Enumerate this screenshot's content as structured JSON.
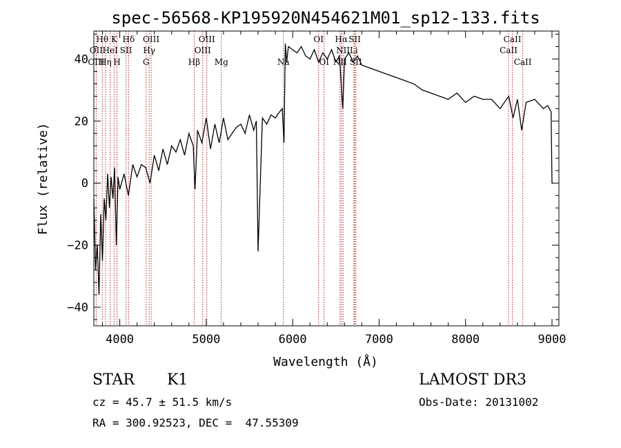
{
  "chart_data": {
    "type": "line",
    "title": "spec-56568-KP195920N454621M01_sp12-133.fits",
    "xlabel": "Wavelength (Å)",
    "ylabel": "Flux (relative)",
    "xlim": [
      3700,
      9080
    ],
    "ylim": [
      -46,
      49
    ],
    "xticks": [
      4000,
      5000,
      6000,
      7000,
      8000,
      9000
    ],
    "yticks": [
      -40,
      -20,
      0,
      20,
      40
    ],
    "series": [
      {
        "name": "spectrum",
        "x": [
          3700,
          3720,
          3740,
          3760,
          3780,
          3800,
          3820,
          3840,
          3860,
          3880,
          3900,
          3920,
          3940,
          3960,
          3980,
          4000,
          4050,
          4100,
          4150,
          4200,
          4250,
          4300,
          4350,
          4400,
          4450,
          4500,
          4550,
          4600,
          4650,
          4700,
          4750,
          4800,
          4850,
          4870,
          4900,
          4950,
          5000,
          5050,
          5100,
          5150,
          5200,
          5250,
          5300,
          5350,
          5400,
          5450,
          5500,
          5550,
          5580,
          5600,
          5650,
          5700,
          5750,
          5800,
          5850,
          5880,
          5900,
          5915,
          5930,
          5950,
          6000,
          6050,
          6100,
          6150,
          6200,
          6250,
          6300,
          6350,
          6400,
          6450,
          6500,
          6540,
          6560,
          6580,
          6600,
          6650,
          6700,
          6750,
          6800,
          6900,
          7000,
          7100,
          7200,
          7300,
          7400,
          7500,
          7600,
          7700,
          7800,
          7900,
          8000,
          8100,
          8200,
          8300,
          8400,
          8500,
          8550,
          8600,
          8650,
          8700,
          8800,
          8900,
          8950,
          8990,
          9000,
          9010
        ],
        "y": [
          -5,
          -28,
          -20,
          -36,
          -10,
          -25,
          -5,
          -12,
          3,
          -8,
          2,
          -5,
          5,
          -20,
          2,
          -2,
          3,
          -4,
          6,
          2,
          6,
          5,
          0,
          9,
          4,
          11,
          6,
          12,
          10,
          14,
          9,
          16,
          12,
          -2,
          17,
          13,
          21,
          11,
          19,
          13,
          21,
          14,
          16,
          18,
          19,
          16,
          22,
          17,
          20,
          -22,
          21,
          19,
          22,
          21,
          23,
          24,
          13,
          45,
          39,
          44,
          43,
          42,
          44,
          41,
          40,
          43,
          39,
          42,
          40,
          43,
          39,
          41,
          33,
          24,
          40,
          42,
          39,
          41,
          38,
          37,
          36,
          35,
          34,
          33,
          32,
          30,
          29,
          28,
          27,
          29,
          26,
          28,
          27,
          27,
          24,
          28,
          21,
          27,
          17,
          26,
          27,
          24,
          25,
          23,
          0,
          0
        ]
      }
    ],
    "lines_top": [
      {
        "label": "Hθ",
        "x": 3798
      },
      {
        "label": "K",
        "x": 3934
      },
      {
        "label": "Hδ",
        "x": 4102
      },
      {
        "label": "OIII",
        "x": 4363
      },
      {
        "label": "OIII",
        "x": 5007
      },
      {
        "label": "OI",
        "x": 6300
      },
      {
        "label": "Hα",
        "x": 6563
      },
      {
        "label": "SII",
        "x": 6717
      },
      {
        "label": "CaII",
        "x": 8542
      }
    ],
    "lines_mid": [
      {
        "label": "OII",
        "x": 3727
      },
      {
        "label": "HeI",
        "x": 3889
      },
      {
        "label": "SII",
        "x": 4072
      },
      {
        "label": "Hγ",
        "x": 4340
      },
      {
        "label": "OIII",
        "x": 4959
      },
      {
        "label": "NII",
        "x": 6583
      },
      {
        "label": "Li",
        "x": 6708
      },
      {
        "label": "CaII",
        "x": 8498
      }
    ],
    "lines_bot": [
      {
        "label": "OIII",
        "x": 3727
      },
      {
        "label": "Hη",
        "x": 3835
      },
      {
        "label": "H",
        "x": 3968
      },
      {
        "label": "G",
        "x": 4305
      },
      {
        "label": "Hβ",
        "x": 4861
      },
      {
        "label": "Mg",
        "x": 5175
      },
      {
        "label": "Na",
        "x": 5893
      },
      {
        "label": "OI",
        "x": 6364
      },
      {
        "label": "NII",
        "x": 6548
      },
      {
        "label": "SII",
        "x": 6731
      },
      {
        "label": "CaII",
        "x": 8662
      }
    ]
  },
  "info": {
    "class_label": "STAR",
    "subclass_label": "K1",
    "survey_label": "LAMOST DR3",
    "cz_text": "cz = 45.7 ± 51.5 km/s",
    "obs_date_text": "Obs-Date: 20131002",
    "radec_text": "RA = 300.92523, DEC =  47.55309"
  },
  "colors": {
    "spectrum": "#000000",
    "line_markers": "#b22222",
    "axes": "#000000"
  }
}
